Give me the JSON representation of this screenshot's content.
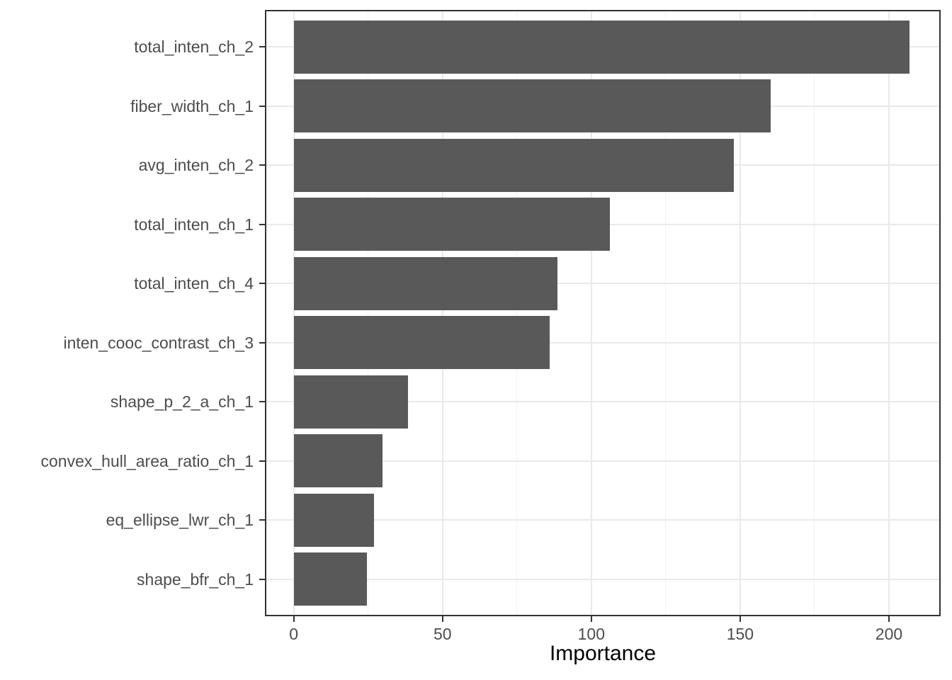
{
  "chart_data": {
    "type": "bar",
    "orientation": "horizontal",
    "title": "",
    "xlabel": "Importance",
    "ylabel": "",
    "categories": [
      "total_inten_ch_2",
      "fiber_width_ch_1",
      "avg_inten_ch_2",
      "total_inten_ch_1",
      "total_inten_ch_4",
      "inten_cooc_contrast_ch_3",
      "shape_p_2_a_ch_1",
      "convex_hull_area_ratio_ch_1",
      "eq_ellipse_lwr_ch_1",
      "shape_bfr_ch_1"
    ],
    "values": [
      207,
      160.3,
      147.9,
      106.2,
      88.7,
      86.1,
      38.3,
      29.9,
      26.9,
      24.6
    ],
    "x_ticks": [
      0,
      50,
      100,
      150,
      200
    ],
    "x_tick_labels": [
      "0",
      "50",
      "100",
      "150",
      "200"
    ],
    "x_minor_ticks": [
      25,
      75,
      125,
      175
    ],
    "xlim": [
      -9.2,
      216.9
    ],
    "bar_width_fraction": 0.9,
    "grid": "vertical major and minor, horizontal major at category centers",
    "legend": "none",
    "colors": {
      "bar_fill": "#595959",
      "panel_border": "#333333",
      "grid_major": "#e9e9e9",
      "grid_minor": "#f2f2f2",
      "axis_text": "#4d4d4d",
      "axis_title": "#000000",
      "tick_mark": "#333333",
      "background": "#ffffff"
    }
  }
}
